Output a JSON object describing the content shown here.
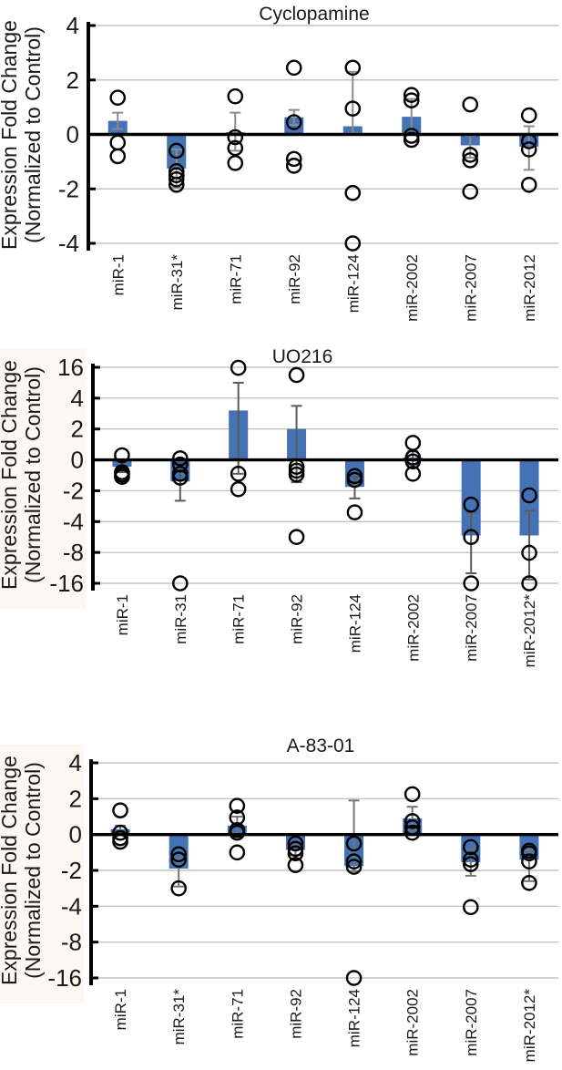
{
  "figure": {
    "y_axis_label_line1": "Expression Fold Change",
    "y_axis_label_line2": "(Normalized to Control)"
  },
  "colors": {
    "bar_fill": "#4472b4",
    "gridline": "#c4c4c4",
    "zero_line": "#000000",
    "axis": "#000000",
    "point_stroke": "#000000",
    "panel_tint": "#fbf8f1",
    "background": "#ffffff"
  },
  "chart_data": [
    {
      "type": "bar",
      "title": "Cyclopamine",
      "ylabel": "Expression Fold Change (Normalized to Control)",
      "yaxis_scale": "linear",
      "yticks": [
        4,
        2,
        0,
        -2,
        -4
      ],
      "ylim": [
        -4,
        4
      ],
      "grid": true,
      "legend": "none",
      "error_color": "#8c8c8c",
      "categories": [
        "miR-1",
        "miR-31*",
        "miR-71",
        "miR-92",
        "miR-124",
        "miR-2002",
        "miR-2007",
        "miR-2012"
      ],
      "series": [
        {
          "category": "miR-1",
          "bar_mean": 0.5,
          "error_range": [
            0.2,
            0.8
          ],
          "points": [
            1.35,
            -0.3,
            -0.8
          ]
        },
        {
          "category": "miR-31*",
          "bar_mean": -1.25,
          "error_range": [
            -0.55,
            -1.95
          ],
          "points": [
            -0.6,
            -1.35,
            -1.5,
            -1.65,
            -1.85
          ]
        },
        {
          "category": "miR-71",
          "bar_mean": 0.08,
          "error_range": [
            -0.6,
            0.8
          ],
          "points": [
            1.4,
            -0.1,
            -0.5,
            -1.05
          ]
        },
        {
          "category": "miR-92",
          "bar_mean": 0.63,
          "error_range": [
            0.35,
            0.9
          ],
          "points": [
            2.45,
            0.45,
            -0.9,
            -1.15
          ]
        },
        {
          "category": "miR-124",
          "bar_mean": 0.3,
          "error_range": [
            0.05,
            2.3
          ],
          "points": [
            2.45,
            0.95,
            -2.15,
            -4
          ]
        },
        {
          "category": "miR-2002",
          "bar_mean": 0.65,
          "error_range": [
            0.0,
            1.3
          ],
          "points": [
            1.45,
            1.25,
            -0.05,
            -0.2
          ]
        },
        {
          "category": "miR-2007",
          "bar_mean": -0.4,
          "error_range": [
            -0.05,
            -0.85
          ],
          "points": [
            1.1,
            -0.75,
            -0.95,
            -2.1
          ]
        },
        {
          "category": "miR-2012",
          "bar_mean": -0.45,
          "error_range": [
            0.3,
            -1.3
          ],
          "points": [
            0.7,
            -0.25,
            -0.55,
            -1.85
          ]
        }
      ]
    },
    {
      "type": "bar",
      "title": "UO216",
      "ylabel": "Expression Fold Change (Normalized to Control)",
      "yaxis_scale": "nonlinear-equal-tick-spacing",
      "yticks": [
        16,
        4,
        2,
        0,
        -2,
        -4,
        -8,
        -16
      ],
      "ylim": [
        -16,
        16
      ],
      "grid": true,
      "legend": "none",
      "error_color": "#5a5a5a",
      "categories": [
        "miR-1",
        "miR-31",
        "miR-71",
        "miR-92",
        "miR-124",
        "miR-2002",
        "miR-2007",
        "miR-2012*"
      ],
      "series": [
        {
          "category": "miR-1",
          "bar_mean": -0.45,
          "error_range": [
            -0.1,
            -0.8
          ],
          "points": [
            0.3,
            -0.8,
            -0.95,
            -1.1
          ]
        },
        {
          "category": "miR-31",
          "bar_mean": -1.4,
          "error_range": [
            -0.2,
            -2.65
          ],
          "points": [
            0.1,
            -0.3,
            -0.9,
            -1.15,
            -16
          ]
        },
        {
          "category": "miR-71",
          "bar_mean": 3.2,
          "error_range": [
            -0.9,
            10
          ],
          "points": [
            15.8,
            -0.9,
            -1.9
          ]
        },
        {
          "category": "miR-92",
          "bar_mean": 2.0,
          "error_range": [
            -1.45,
            3.5
          ],
          "points": [
            13,
            -0.45,
            -0.7,
            -0.95,
            -6
          ]
        },
        {
          "category": "miR-124",
          "bar_mean": -1.75,
          "error_range": [
            -1.1,
            -2.5
          ],
          "points": [
            -1.05,
            -1.3,
            -3.4
          ]
        },
        {
          "category": "miR-2002",
          "bar_mean": 0.15,
          "error_range": [
            -0.3,
            0.55
          ],
          "points": [
            1.1,
            0.15,
            -0.1,
            -0.9
          ]
        },
        {
          "category": "miR-2007",
          "bar_mean": -5.8,
          "error_range": [
            -3.4,
            -13.4
          ],
          "points": [
            -2.9,
            -6,
            -16
          ]
        },
        {
          "category": "miR-2012*",
          "bar_mean": -5.8,
          "error_range": [
            -3.3,
            -15
          ],
          "points": [
            -2.3,
            -8.1,
            -16
          ]
        }
      ]
    },
    {
      "type": "bar",
      "title": "A-83-01",
      "ylabel": "Expression Fold Change (Normalized to Control)",
      "yaxis_scale": "nonlinear-equal-tick-spacing",
      "yticks": [
        4,
        2,
        0,
        -2,
        -4,
        -8,
        -16
      ],
      "ylim": [
        -16,
        4
      ],
      "grid": true,
      "legend": "none",
      "error_color": "#757575",
      "categories": [
        "miR-1",
        "miR-31*",
        "miR-71",
        "miR-92",
        "miR-124",
        "miR-2002",
        "miR-2007",
        "miR-2012*"
      ],
      "series": [
        {
          "category": "miR-1",
          "bar_mean": 0.3,
          "error_range": [
            0.1,
            0.5
          ],
          "points": [
            1.35,
            0.1,
            -0.2,
            -0.4
          ]
        },
        {
          "category": "miR-31*",
          "bar_mean": -1.9,
          "error_range": [
            -1.35,
            -2.9
          ],
          "points": [
            -1.1,
            -1.4,
            -3
          ]
        },
        {
          "category": "miR-71",
          "bar_mean": 0.5,
          "error_range": [
            -0.15,
            1.0
          ],
          "points": [
            1.6,
            0.95,
            0.25,
            0.1,
            -1
          ]
        },
        {
          "category": "miR-92",
          "bar_mean": -0.85,
          "error_range": [
            -0.55,
            -1.15
          ],
          "points": [
            -0.5,
            -0.8,
            -1.05,
            -1.7
          ]
        },
        {
          "category": "miR-124",
          "bar_mean": -1.75,
          "error_range": [
            1.9,
            -2.05
          ],
          "points": [
            -0.5,
            -1.5,
            -1.8,
            -16
          ]
        },
        {
          "category": "miR-2002",
          "bar_mean": 0.9,
          "error_range": [
            0.3,
            1.55
          ],
          "points": [
            2.25,
            0.75,
            0.4,
            0.1
          ]
        },
        {
          "category": "miR-2007",
          "bar_mean": -1.55,
          "error_range": [
            -0.8,
            -2.3
          ],
          "points": [
            -0.7,
            -1.4,
            -1.65,
            -4.1
          ]
        },
        {
          "category": "miR-2012*",
          "bar_mean": -1.4,
          "error_range": [
            -0.85,
            -2.6
          ],
          "points": [
            -0.9,
            -1.05,
            -1.5,
            -2.7
          ]
        }
      ]
    }
  ]
}
